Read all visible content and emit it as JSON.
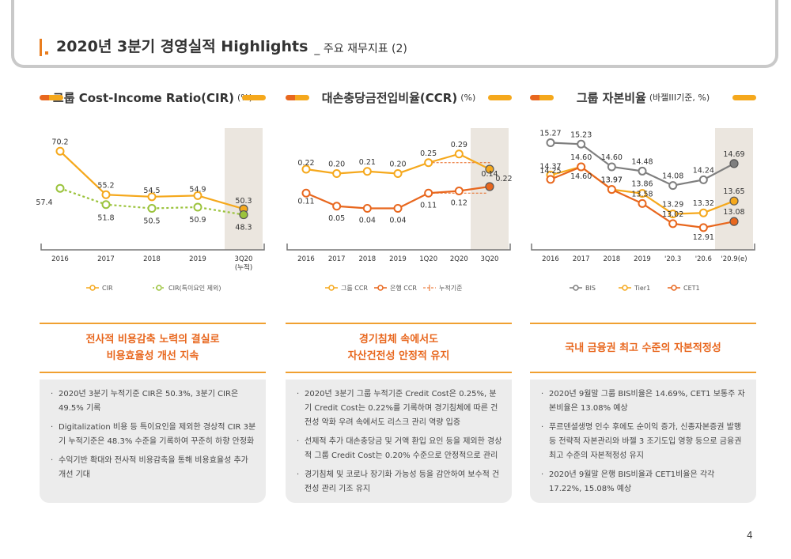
{
  "header": {
    "roman": "I",
    "title": "2020년 3분기 경영실적 Highlights",
    "subtitle": "_ 주요 재무지표 (2)"
  },
  "panels": [
    {
      "title": "그룹 Cost-Income Ratio(CIR)",
      "unit": "(%)",
      "headline": [
        "전사적 비용감축 노력의 결실로",
        "비용효율성 개선 지속"
      ],
      "bullets": [
        "2020년 3분기 누적기준 CIR은 50.3%, 3분기 CIR은 49.5% 기록",
        "Digitalization 비용 등 특이요인을 제외한 경상적 CIR 3분기 누적기준은 48.3% 수준을 기록하여 꾸준히 하향 안정화",
        "수익기반 확대와 전사적 비용감축을 통해 비용효율성 추가 개선 기대"
      ]
    },
    {
      "title": "대손충당금전입비율(CCR)",
      "unit": "(%)",
      "headline": [
        "경기침체 속에서도",
        "자산건전성 안정적 유지"
      ],
      "bullets": [
        "2020년 3분기 그룹 누적기준 Credit Cost은 0.25%, 분기 Credit Cost는 0.22%를 기록하며 경기침체에 따른 건전성 악화 우려 속에서도 리스크 관리 역량 입증",
        "선제적 추가 대손충당금 및 거액 환입 요인 등을 제외한 경상적 그룹 Credit Cost는 0.20% 수준으로 안정적으로 관리",
        "경기침체 및 코로나 장기화 가능성 등을 감안하여 보수적 건전성 관리 기조 유지"
      ]
    },
    {
      "title": "그룹 자본비율",
      "unit": "(바젤III기준, %)",
      "headline": [
        "국내 금융권 최고 수준의 자본적정성"
      ],
      "bullets": [
        "2020년 9월말 그룹 BIS비율은 14.69%, CET1 보통주 자본비율은 13.08% 예상",
        "푸르덴셜생명 인수 후에도 순이익 증가, 신종자본증권 발행 등 전략적 자본관리와 바젤 3 조기도입 영향 등으로 금융권 최고 수준의 자본적정성 유지",
        "2020년 9월말 은행 BIS비율과 CET1비율은 각각 17.22%, 15.08% 예상"
      ]
    }
  ],
  "chart_data": [
    {
      "type": "line",
      "title": "그룹 Cost-Income Ratio(CIR)",
      "unit": "(%)",
      "categories": [
        "2016",
        "2017",
        "2018",
        "2019",
        "3Q20\n(누적)"
      ],
      "series": [
        {
          "name": "CIR",
          "values": [
            70.2,
            55.2,
            54.5,
            54.9,
            50.3
          ],
          "color": "#f5a81c",
          "style": "solid"
        },
        {
          "name": "CIR(특이요인 제외)",
          "values": [
            57.4,
            51.8,
            50.5,
            50.9,
            48.3
          ],
          "color": "#9bc33c",
          "style": "dashed"
        }
      ],
      "ylim": [
        40,
        76
      ],
      "highlight_last": true
    },
    {
      "type": "line",
      "title": "대손충당금전입비율(CCR)",
      "unit": "(%)",
      "categories": [
        "2016",
        "2017",
        "2018",
        "2019",
        "1Q20",
        "2Q20",
        "3Q20"
      ],
      "series": [
        {
          "name": "그룹 CCR",
          "values": [
            0.22,
            0.2,
            0.21,
            0.2,
            0.25,
            0.29,
            0.22
          ],
          "color": "#f5a81c",
          "style": "solid"
        },
        {
          "name": "은행 CCR",
          "values": [
            0.11,
            0.05,
            0.04,
            0.04,
            0.11,
            0.12,
            0.14
          ],
          "color": "#e8671e",
          "style": "solid"
        }
      ],
      "cumulative": {
        "name": "누적기준",
        "group_values": [
          0.25,
          0.25
        ],
        "bank_values": [
          0.11,
          0.12
        ],
        "x_from": 4,
        "x_to": 6,
        "color": "#e8671e"
      },
      "ylim": [
        -0.1,
        0.38
      ],
      "highlight_last": true
    },
    {
      "type": "line",
      "title": "그룹 자본비율",
      "unit": "(바젤III기준, %)",
      "categories": [
        "2016",
        "2017",
        "2018",
        "2019",
        "'20.3",
        "'20.6",
        "'20.9(e)"
      ],
      "series": [
        {
          "name": "BIS",
          "values": [
            15.27,
            15.23,
            14.6,
            14.48,
            14.08,
            14.24,
            14.69
          ],
          "color": "#7f7f7f",
          "style": "solid"
        },
        {
          "name": "Tier1",
          "values": [
            14.37,
            14.6,
            13.97,
            13.86,
            13.29,
            13.32,
            13.65
          ],
          "color": "#f5a81c",
          "style": "solid"
        },
        {
          "name": "CET1",
          "values": [
            14.25,
            14.6,
            13.97,
            13.58,
            13.02,
            12.91,
            13.08
          ],
          "color": "#e8671e",
          "style": "solid"
        }
      ],
      "ylim": [
        12.6,
        15.5
      ],
      "highlight_last": true
    }
  ],
  "page": {
    "number": "4"
  }
}
